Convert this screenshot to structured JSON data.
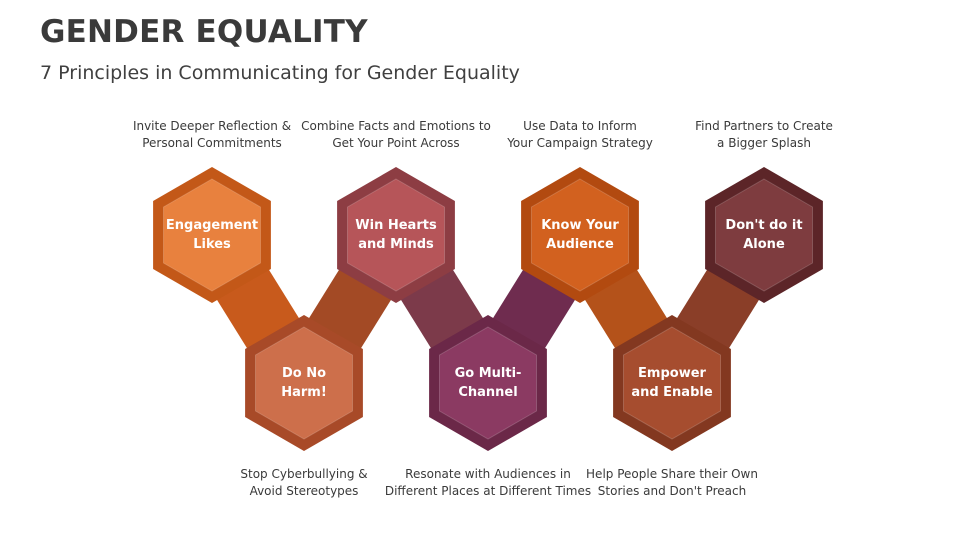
{
  "header": {
    "title": "GENDER EQUALITY",
    "subtitle": "7 Principles in Communicating for Gender Equality"
  },
  "principles": [
    {
      "id": "engagement",
      "row": "top",
      "label_lines": [
        "Engagement",
        "Likes"
      ],
      "desc_lines": [
        "Invite Deeper Reflection &",
        "Personal Commitments"
      ],
      "color": "#e8813e",
      "border": "#c35818"
    },
    {
      "id": "do-no-harm",
      "row": "bottom",
      "label_lines": [
        "Do No",
        "Harm!"
      ],
      "desc_lines": [
        "Stop Cyberbullying &",
        "Avoid Stereotypes"
      ],
      "color": "#cd6f4b",
      "border": "#a84a28"
    },
    {
      "id": "win-hearts",
      "row": "top",
      "label_lines": [
        "Win Hearts",
        "and Minds"
      ],
      "desc_lines": [
        "Combine Facts and Emotions to",
        "Get Your Point Across"
      ],
      "color": "#b65559",
      "border": "#8d3d43"
    },
    {
      "id": "multi-channel",
      "row": "bottom",
      "label_lines": [
        "Go Multi-",
        "Channel"
      ],
      "desc_lines": [
        "Resonate with Audiences in",
        "Different Places at Different Times"
      ],
      "color": "#8b3a62",
      "border": "#6b2848"
    },
    {
      "id": "know-audience",
      "row": "top",
      "label_lines": [
        "Know Your",
        "Audience"
      ],
      "desc_lines": [
        "Use Data to Inform",
        "Your Campaign Strategy"
      ],
      "color": "#d2611f",
      "border": "#b24a10"
    },
    {
      "id": "empower",
      "row": "bottom",
      "label_lines": [
        "Empower",
        "and Enable"
      ],
      "desc_lines": [
        "Help People Share their Own",
        "Stories and Don't Preach"
      ],
      "color": "#a64d2f",
      "border": "#833820"
    },
    {
      "id": "partners",
      "row": "top",
      "label_lines": [
        "Don't do it",
        "Alone"
      ],
      "desc_lines": [
        "Find Partners to Create",
        "a Bigger Splash"
      ],
      "color": "#7e3c3f",
      "border": "#5c2528"
    }
  ],
  "connector_colors": [
    "#c85a1c",
    "#a34a25",
    "#7c3a4a",
    "#6f2c4f",
    "#b4521a",
    "#8a3e28"
  ]
}
